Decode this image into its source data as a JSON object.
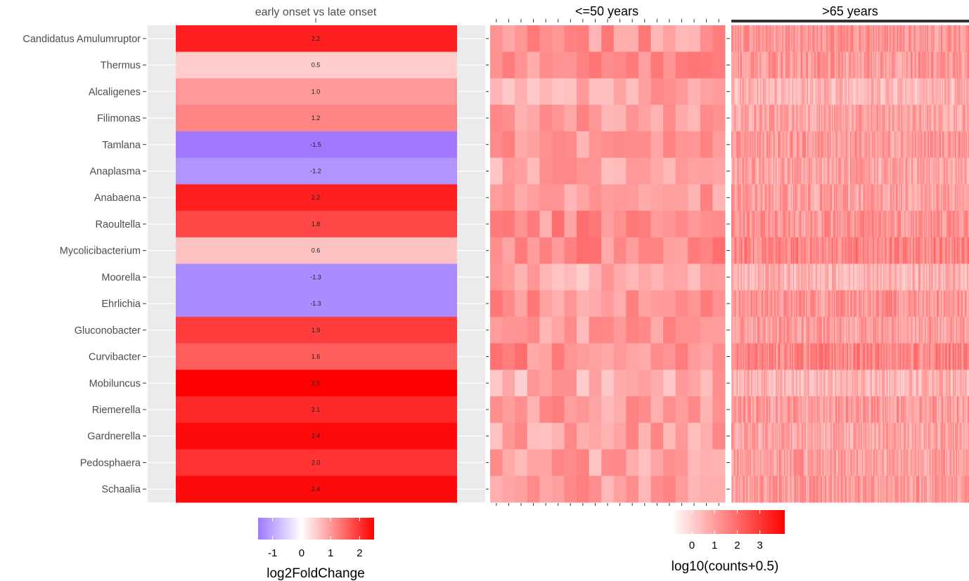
{
  "chart_data": {
    "type": "heatmap",
    "panels": [
      {
        "title": "early onset vs late onset",
        "kind": "log2FoldChange"
      },
      {
        "title": "<=50 years",
        "kind": "counts"
      },
      {
        "title": ">65 years",
        "kind": "counts"
      }
    ],
    "rows": [
      "Candidatus Amulumruptor",
      "Thermus",
      "Alcaligenes",
      "Filimonas",
      "Tamlana",
      "Anaplasma",
      "Anabaena",
      "Raoultella",
      "Mycolicibacterium",
      "Moorella",
      "Ehrlichia",
      "Gluconobacter",
      "Curvibacter",
      "Mobiluncus",
      "Riemerella",
      "Gardnerella",
      "Pedosphaera",
      "Schaalia"
    ],
    "log2FoldChange": [
      2.2,
      0.5,
      1.0,
      1.2,
      -1.5,
      -1.2,
      2.2,
      1.8,
      0.6,
      -1.3,
      -1.3,
      1.9,
      1.6,
      2.5,
      2.1,
      2.4,
      2.0,
      2.4
    ],
    "log2FoldChange_labels": [
      "2.2",
      "0.5",
      "1.0",
      "1.2",
      "-1.5",
      "-1.2",
      "2.2",
      "1.8",
      "0.6",
      "-1.3",
      "-1.3",
      "1.9",
      "1.6",
      "2.5",
      "2.1",
      "2.4",
      "2.0",
      "2.4"
    ],
    "samples_le50_count": 19,
    "samples_gt65_count": 220,
    "row_mean_log10_le50": [
      1.1,
      1.2,
      0.8,
      1.0,
      1.0,
      0.8,
      1.0,
      1.3,
      1.4,
      0.6,
      1.2,
      1.0,
      1.4,
      0.7,
      1.1,
      0.9,
      0.9,
      1.1
    ],
    "row_mean_log10_gt65": [
      1.2,
      1.1,
      0.6,
      0.9,
      1.1,
      0.9,
      1.0,
      1.2,
      1.5,
      0.6,
      1.2,
      1.0,
      1.5,
      0.6,
      1.1,
      0.9,
      1.0,
      1.1
    ],
    "legend_fc": {
      "title": "log2FoldChange",
      "ticks": [
        "-1",
        "0",
        "1",
        "2"
      ],
      "range": [
        -1.5,
        2.5
      ],
      "low": "#9f78ff",
      "mid": "#ffffff",
      "high": "#ff0000"
    },
    "legend_counts": {
      "title": "log10(counts+0.5)",
      "ticks": [
        "0",
        "1",
        "2",
        "3"
      ],
      "range": [
        -0.9,
        4.1
      ],
      "low": "#ffffff",
      "high": "#ff0000"
    }
  }
}
